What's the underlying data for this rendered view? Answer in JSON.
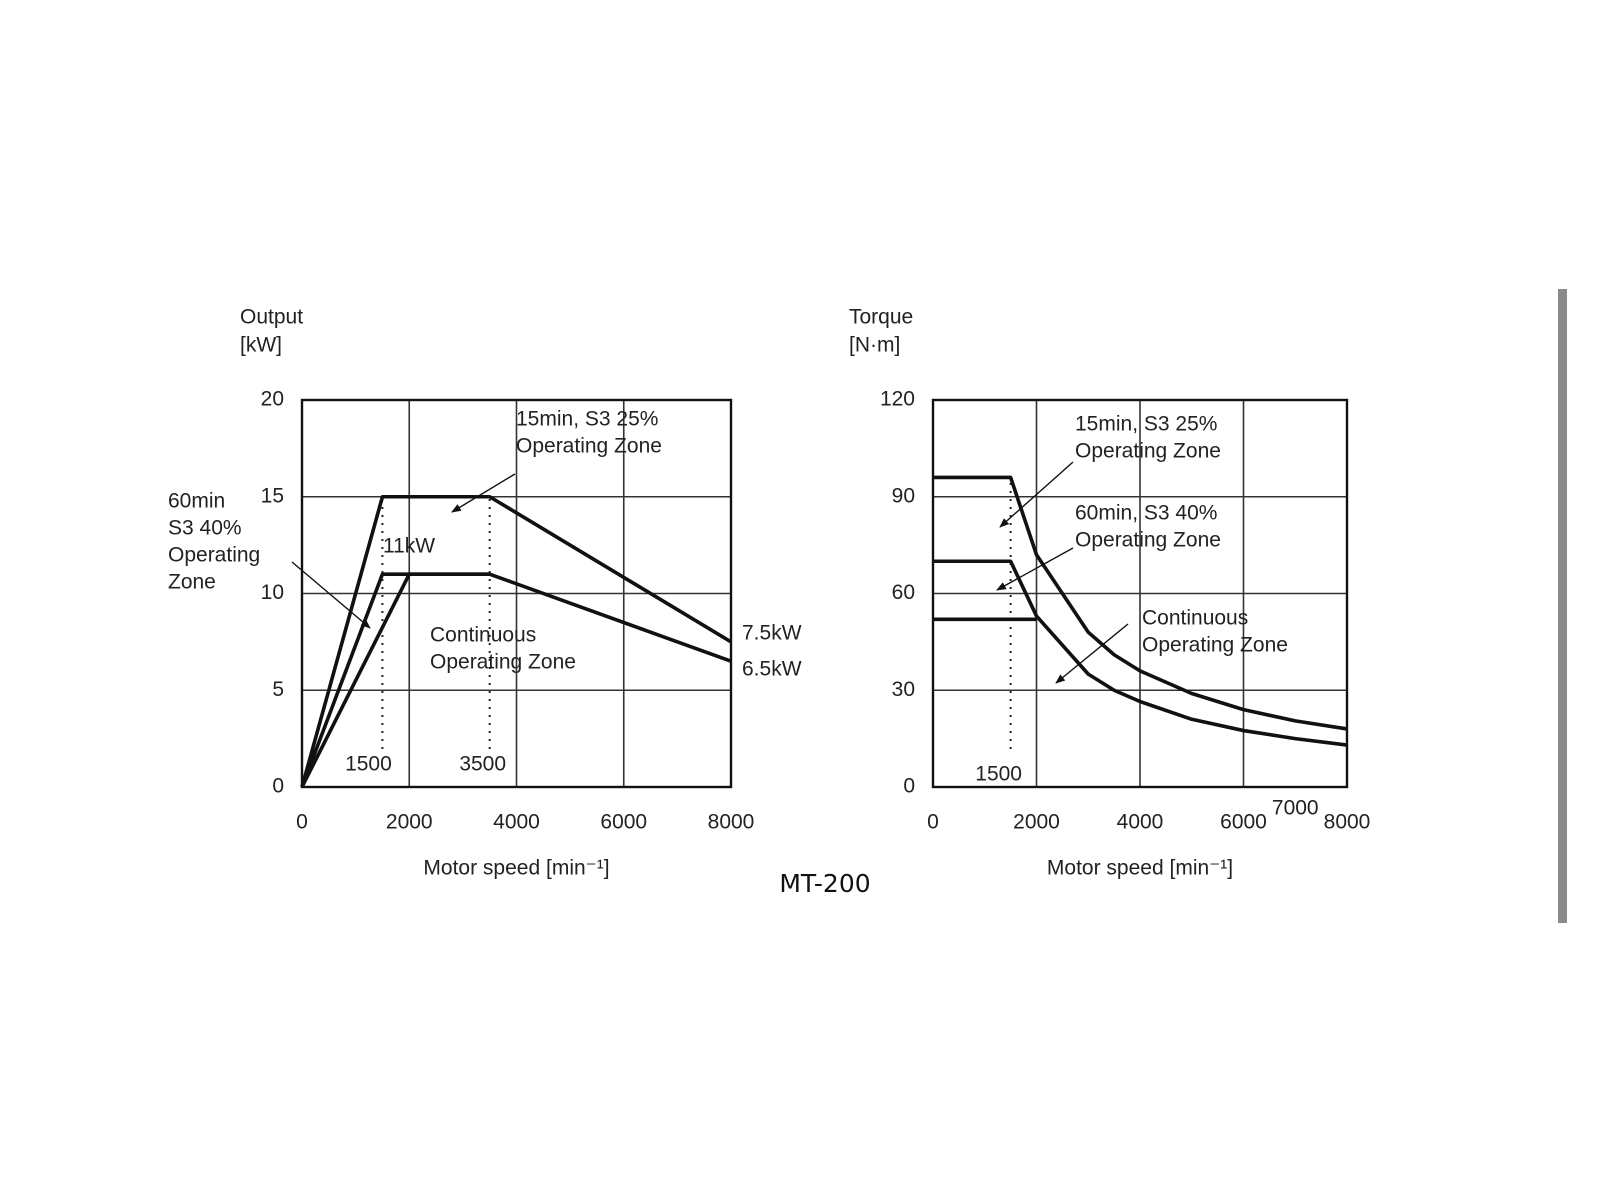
{
  "caption": "MT-200",
  "chart_data": [
    {
      "type": "line",
      "ylabel": [
        "Output",
        "[kW]"
      ],
      "xlabel": "Motor speed [min⁻¹]",
      "xlim": [
        0,
        8000
      ],
      "xticks": [
        0,
        2000,
        4000,
        6000,
        8000
      ],
      "ylim": [
        0,
        20
      ],
      "yticks": [
        0,
        5,
        10,
        15,
        20
      ],
      "grid": true,
      "series": [
        {
          "color": "#111111",
          "x": [
            0,
            1500,
            3500,
            8000
          ],
          "values": [
            0,
            15,
            15,
            7.5
          ]
        },
        {
          "color": "#111111",
          "x": [
            0,
            1500,
            3500,
            8000
          ],
          "values": [
            0,
            11,
            11,
            6.5
          ]
        },
        {
          "color": "#111111",
          "x": [
            0,
            2000,
            3500
          ],
          "values": [
            0,
            11,
            11
          ]
        }
      ],
      "vlines": [
        1500,
        3500
      ],
      "annotations": [
        [
          "15min, S3 25%",
          "Operating Zone"
        ],
        [
          "60min",
          "S3 40%",
          "Operating",
          "Zone"
        ],
        [
          "11kW"
        ],
        [
          "Continuous",
          "Operating Zone"
        ],
        [
          "7.5kW"
        ],
        [
          "6.5kW"
        ]
      ]
    },
    {
      "type": "line",
      "ylabel": [
        "Torque",
        "[N·m]"
      ],
      "xlabel": "Motor speed [min⁻¹]",
      "xlim": [
        0,
        8000
      ],
      "xticks": [
        0,
        2000,
        4000,
        6000,
        8000
      ],
      "extra_xtick": 7000,
      "ylim": [
        0,
        120
      ],
      "yticks": [
        0,
        30,
        60,
        90,
        120
      ],
      "grid": true,
      "series": [
        {
          "color": "#111111",
          "x": [
            0,
            1500,
            2000,
            3000,
            3500,
            4000,
            5000,
            6000,
            7000,
            8000
          ],
          "values": [
            96,
            96,
            72,
            48,
            41,
            36,
            29,
            24,
            20.5,
            18
          ]
        },
        {
          "color": "#111111",
          "x": [
            0,
            1500,
            2000,
            3000,
            3500,
            4000,
            5000,
            6000,
            7000,
            8000
          ],
          "values": [
            70,
            70,
            53,
            35,
            30,
            26.5,
            21,
            17.5,
            15,
            13
          ]
        },
        {
          "color": "#111111",
          "x": [
            0,
            2000
          ],
          "values": [
            52,
            52
          ]
        }
      ],
      "vlines": [
        1500
      ],
      "annotations": [
        [
          "15min, S3 25%",
          "Operating Zone"
        ],
        [
          "60min, S3 40%",
          "Operating Zone"
        ],
        [
          "Continuous",
          "Operating Zone"
        ]
      ]
    }
  ]
}
